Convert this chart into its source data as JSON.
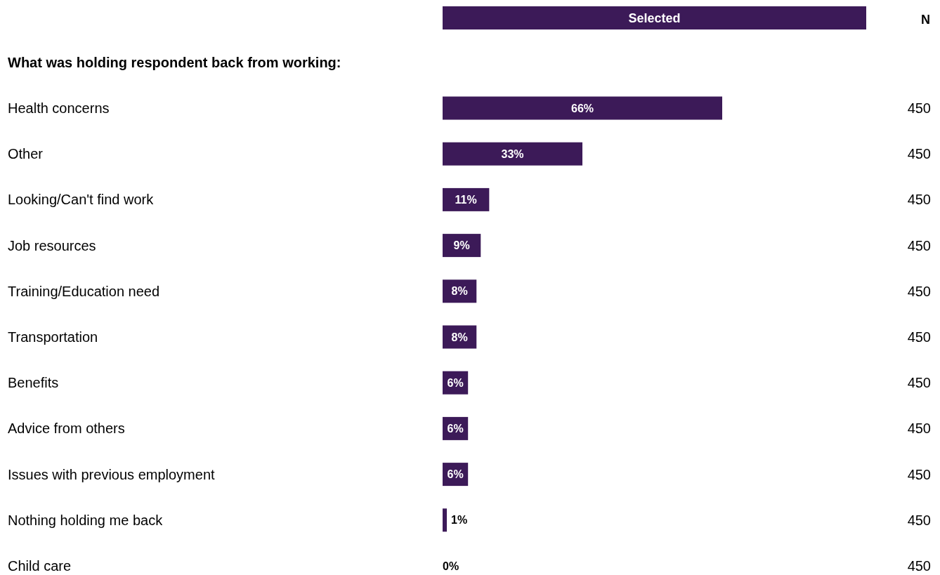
{
  "chart_data": {
    "type": "bar",
    "orientation": "horizontal",
    "title": "What was holding respondent back from working:",
    "categories": [
      "Health concerns",
      "Other",
      "Looking/Can't find work",
      "Job resources",
      "Training/Education need",
      "Transportation",
      "Benefits",
      "Advice from others",
      "Issues with previous employment",
      "Nothing holding me back",
      "Child care"
    ],
    "series": [
      {
        "name": "Selected",
        "color": "#3c1a58",
        "values": [
          66,
          33,
          11,
          9,
          8,
          8,
          6,
          6,
          6,
          1,
          0
        ],
        "value_labels": [
          "66%",
          "33%",
          "11%",
          "9%",
          "8%",
          "8%",
          "6%",
          "6%",
          "6%",
          "1%",
          "0%"
        ]
      }
    ],
    "legend": "top",
    "annotations": [
      "N",
      "450",
      "450",
      "450",
      "450",
      "450",
      "450",
      "450",
      "450",
      "450",
      "450",
      "450"
    ]
  }
}
